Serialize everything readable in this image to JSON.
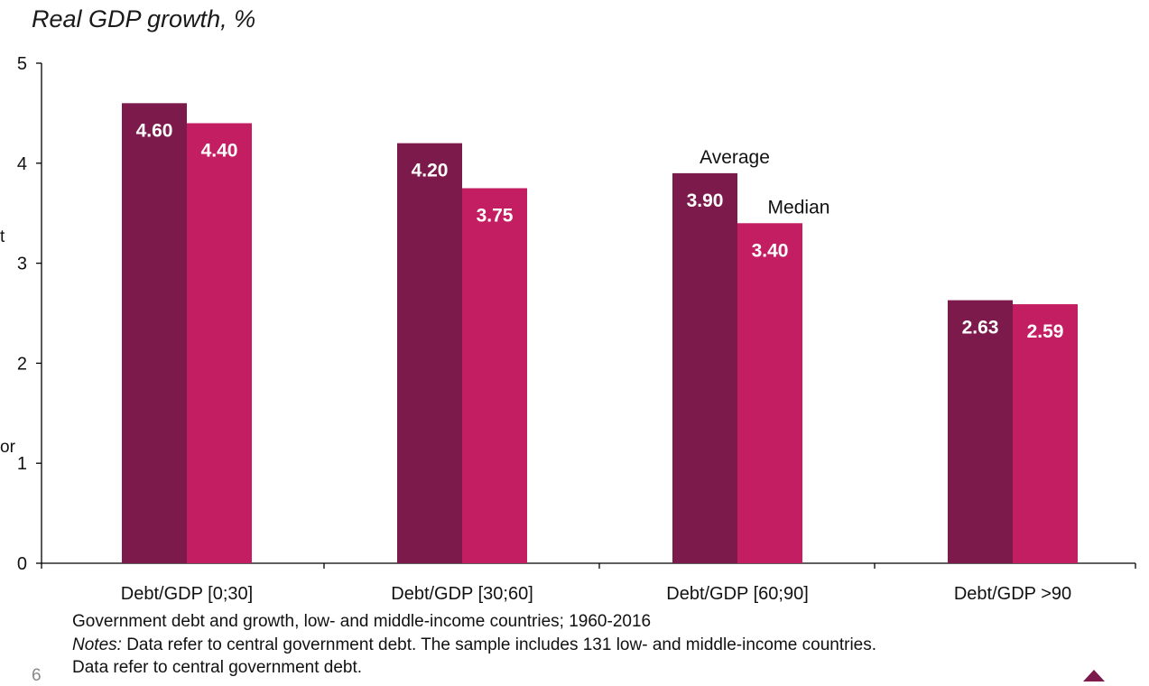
{
  "chart_data": {
    "type": "bar",
    "title": "Real GDP growth, %",
    "categories": [
      "Debt/GDP [0;30]",
      "Debt/GDP [30;60]",
      "Debt/GDP [60;90]",
      "Debt/GDP >90"
    ],
    "series": [
      {
        "name": "Average",
        "values": [
          4.6,
          4.2,
          3.9,
          2.63
        ],
        "labels": [
          "4.60",
          "4.20",
          "3.90",
          "2.63"
        ],
        "color": "#7d1a4c"
      },
      {
        "name": "Median",
        "values": [
          4.4,
          3.75,
          3.4,
          2.59
        ],
        "labels": [
          "4.40",
          "3.75",
          "3.40",
          "2.59"
        ],
        "color": "#c41e63"
      }
    ],
    "ylim": [
      0,
      5
    ],
    "yticks": [
      0,
      1,
      2,
      3,
      4,
      5
    ],
    "legend_placement": "inline labels above third category bars",
    "grid": false,
    "xlabel": "",
    "ylabel": ""
  },
  "notes": {
    "caption": "Government debt and growth, low- and middle-income countries; 1960-2016",
    "notes_label": "Notes:",
    "notes_text": " Data refer to central government debt. The sample includes 131 low- and middle-income countries.",
    "notes_line2": "Data refer to central government debt."
  },
  "edge_fragments": {
    "left_t": "t",
    "left_or": "or",
    "page_number": "6"
  },
  "colors": {
    "axis": "#000000",
    "logo": "#7d1a4c"
  }
}
